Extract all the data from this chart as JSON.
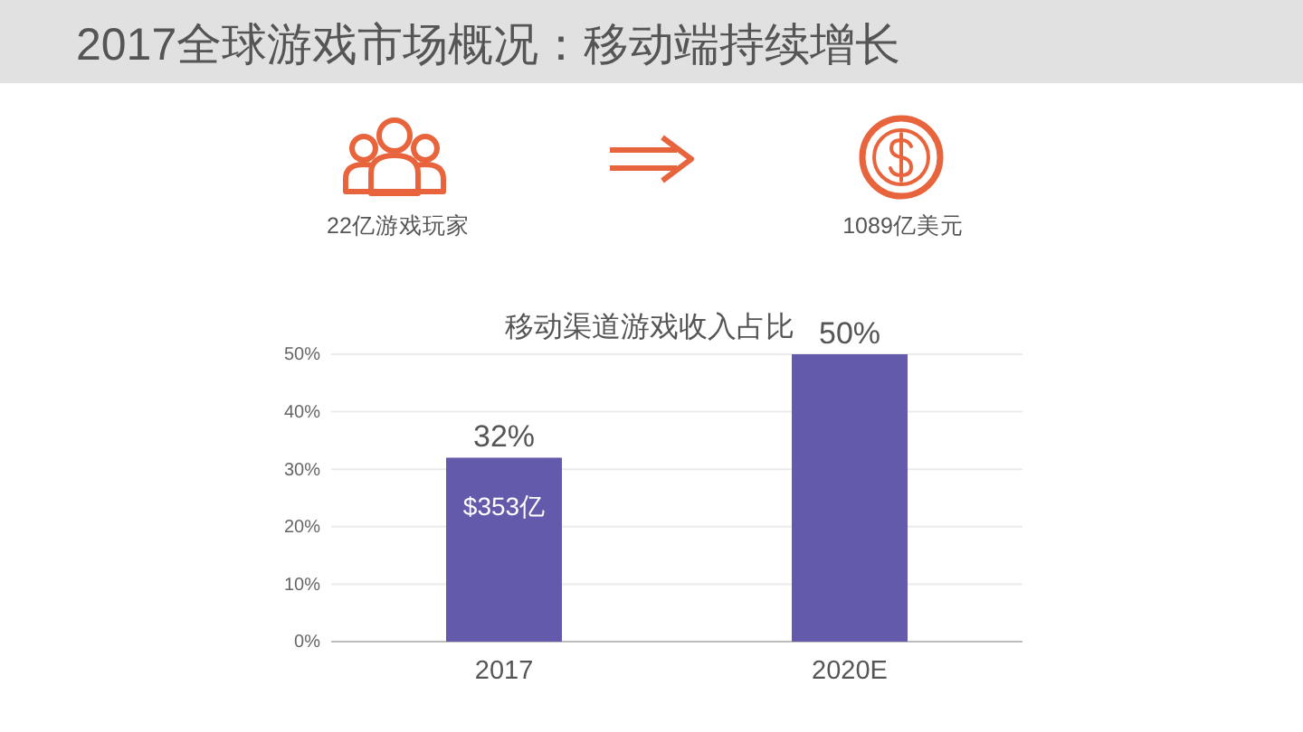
{
  "chart_data": [
    {
      "type": "other",
      "title": "2017全球游戏市场概况：移动端持续增长",
      "annotations": [
        "22亿游戏玩家",
        "1089亿美元"
      ]
    },
    {
      "type": "bar",
      "title": "移动渠道游戏收入占比",
      "categories": [
        "2017",
        "2020E"
      ],
      "values": [
        32,
        50
      ],
      "color": "#635aab",
      "value_labels": [
        "32%",
        "50%"
      ],
      "annotations": [
        {
          "text": "$353亿",
          "x": "2017",
          "y": 32
        }
      ],
      "ylim": [
        0,
        50
      ],
      "yticks": [
        {
          "value": 0,
          "label": "0%"
        },
        {
          "value": 10,
          "label": "10%"
        },
        {
          "value": 20,
          "label": "20%"
        },
        {
          "value": 30,
          "label": "30%"
        },
        {
          "value": 40,
          "label": "40%"
        },
        {
          "value": 50,
          "label": "50%"
        }
      ],
      "grid": "y"
    }
  ]
}
